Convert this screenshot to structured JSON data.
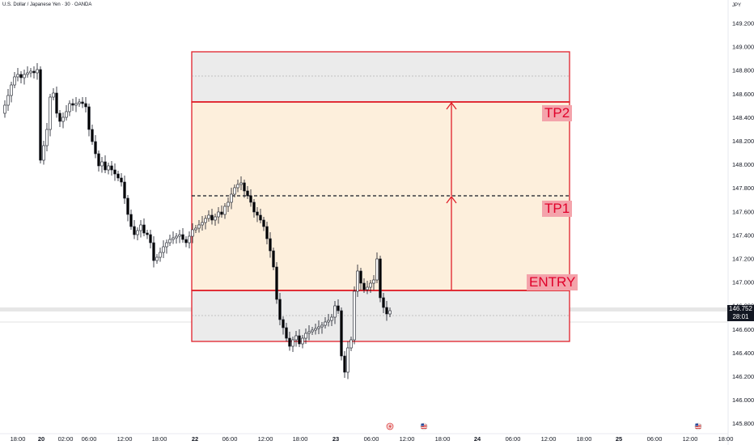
{
  "header": {
    "symbol": "U.S. Dollar / Japanese Yen · 30 · OANDA",
    "currency": "JPY"
  },
  "price_axis": {
    "labels": [
      "149.200",
      "149.000",
      "148.800",
      "148.600",
      "148.400",
      "148.200",
      "148.000",
      "147.800",
      "147.600",
      "147.400",
      "147.200",
      "147.000",
      "146.800",
      "146.600",
      "146.400",
      "146.200",
      "146.000",
      "145.800"
    ],
    "current_price": "146.752",
    "countdown": "28:01"
  },
  "time_axis": {
    "labels": [
      "18:00",
      "20",
      "02:00",
      "06:00",
      "12:00",
      "18:00",
      "22",
      "06:00",
      "12:00",
      "18:00",
      "23",
      "06:00",
      "12:00",
      "18:00",
      "24",
      "06:00",
      "12:00",
      "18:00",
      "25",
      "06:00",
      "12:00",
      "18:00"
    ]
  },
  "trade_zones": {
    "tp2_label": "TP2",
    "tp1_label": "TP1",
    "entry_label": "ENTRY"
  },
  "colors": {
    "up_candle": "#ffffff",
    "down_candle": "#000000",
    "zone_red": "#e0202a",
    "profit_zone": "#fdefdc",
    "gray_zone": "#ebebeb"
  },
  "icons": [
    "lightning-event-icon",
    "us-flag-event-icon",
    "us-flag-event-icon"
  ]
}
